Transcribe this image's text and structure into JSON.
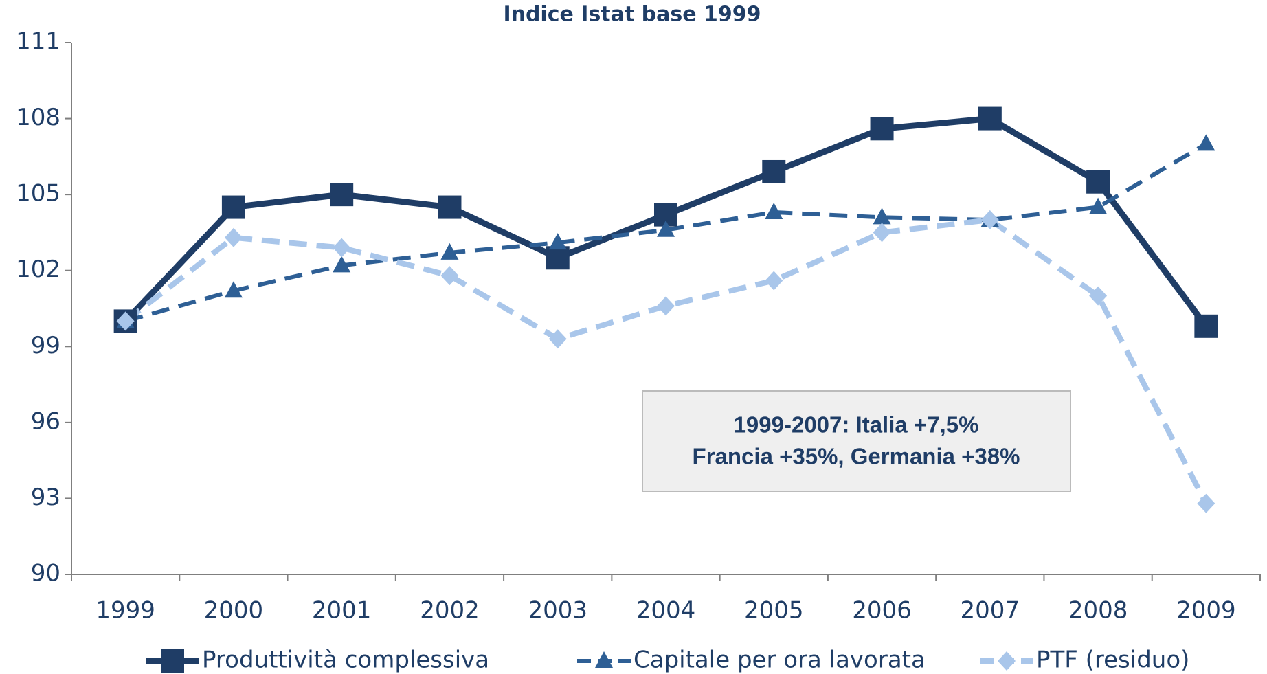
{
  "chart_data": {
    "type": "line",
    "title": "Indice Istat base 1999",
    "categories": [
      "1999",
      "2000",
      "2001",
      "2002",
      "2003",
      "2004",
      "2005",
      "2006",
      "2007",
      "2008",
      "2009"
    ],
    "series": [
      {
        "name": "Produttività complessiva",
        "color": "#1f3d66",
        "marker": "square",
        "dash": "solid",
        "values": [
          100.0,
          104.5,
          105.0,
          104.5,
          102.5,
          104.2,
          105.9,
          107.6,
          108.0,
          105.5,
          99.8
        ]
      },
      {
        "name": "Capitale per ora lavorata",
        "color": "#2e5f95",
        "marker": "triangle",
        "dash": "dashed",
        "values": [
          100.0,
          101.2,
          102.2,
          102.7,
          103.1,
          103.6,
          104.3,
          104.1,
          104.0,
          104.5,
          107.0
        ]
      },
      {
        "name": "PTF (residuo)",
        "color": "#a9c6ea",
        "marker": "diamond",
        "dash": "dashed",
        "values": [
          100.0,
          103.3,
          102.9,
          101.8,
          99.3,
          100.6,
          101.6,
          103.5,
          104.0,
          101.0,
          92.8
        ]
      }
    ],
    "ylim": [
      90,
      111
    ],
    "yticks": [
      90,
      93,
      96,
      99,
      102,
      105,
      108,
      111
    ],
    "annotation": [
      "1999-2007: Italia +7,5%",
      "Francia +35%, Germania +38%"
    ],
    "legend": "bottom",
    "grid": false
  }
}
